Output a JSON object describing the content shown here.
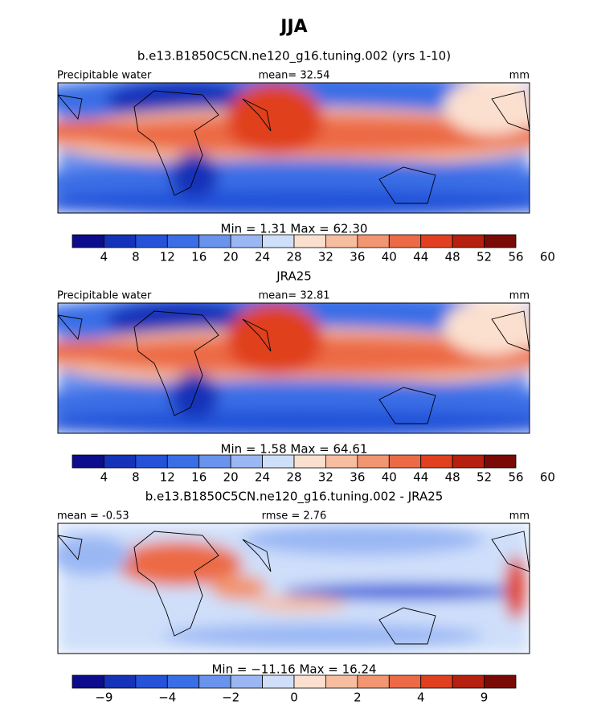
{
  "title": "JJA",
  "panels": [
    {
      "title": "b.e13.B1850C5CN.ne120_g16.tuning.002 (yrs 1-10)",
      "left": "Precipitable water",
      "center": "mean=  32.54",
      "right": "mm",
      "minmax": "Min =    1.31 Max =   62.30",
      "colorbar": {
        "colors": [
          "#0c0c8c",
          "#1433b8",
          "#2452d9",
          "#3a6ee6",
          "#6a93ee",
          "#9ab7f4",
          "#cfdffa",
          "#fbe0cf",
          "#f7bda0",
          "#f29571",
          "#ec6a45",
          "#e0401f",
          "#b5200f",
          "#7a0a05"
        ],
        "labels": [
          "4",
          "8",
          "12",
          "16",
          "20",
          "24",
          "28",
          "32",
          "36",
          "40",
          "44",
          "48",
          "52",
          "56",
          "60"
        ]
      }
    },
    {
      "title": "JRA25",
      "left": "Precipitable water",
      "center": "mean=  32.81",
      "right": "mm",
      "minmax": "Min =    1.58 Max =   64.61",
      "colorbar": {
        "colors": [
          "#0c0c8c",
          "#1433b8",
          "#2452d9",
          "#3a6ee6",
          "#6a93ee",
          "#9ab7f4",
          "#cfdffa",
          "#fbe0cf",
          "#f7bda0",
          "#f29571",
          "#ec6a45",
          "#e0401f",
          "#b5200f",
          "#7a0a05"
        ],
        "labels": [
          "4",
          "8",
          "12",
          "16",
          "20",
          "24",
          "28",
          "32",
          "36",
          "40",
          "44",
          "48",
          "52",
          "56",
          "60"
        ]
      }
    },
    {
      "title": "b.e13.B1850C5CN.ne120_g16.tuning.002 - JRA25",
      "left": "mean =  -0.53",
      "center": "rmse =    2.76",
      "right": "mm",
      "minmax": "Min = −11.16 Max =   16.24",
      "colorbar": {
        "colors": [
          "#0c0c8c",
          "#1433b8",
          "#2452d9",
          "#3a6ee6",
          "#6a93ee",
          "#9ab7f4",
          "#cfdffa",
          "#fbe0cf",
          "#f7bda0",
          "#f29571",
          "#ec6a45",
          "#e0401f",
          "#b5200f",
          "#7a0a05"
        ],
        "labels": [
          "−9",
          "−4",
          "−2",
          "0",
          "2",
          "4",
          "9"
        ]
      }
    }
  ]
}
